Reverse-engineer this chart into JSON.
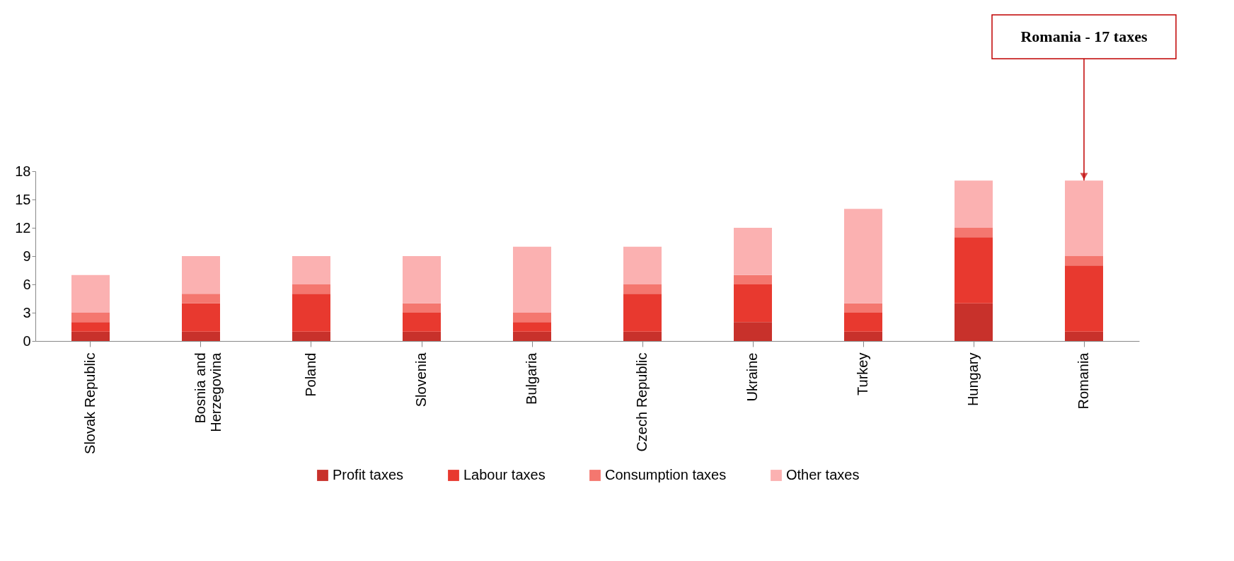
{
  "chart_data": {
    "type": "bar",
    "stacked": true,
    "categories": [
      "Slovak Republic",
      "Bosnia and Herzegovina",
      "Poland",
      "Slovenia",
      "Bulgaria",
      "Czech Republic",
      "Ukraine",
      "Turkey",
      "Hungary",
      "Romania"
    ],
    "series": [
      {
        "name": "Profit taxes",
        "color": "#c8312b",
        "values": [
          1,
          1,
          1,
          1,
          1,
          1,
          2,
          1,
          4,
          1
        ]
      },
      {
        "name": "Labour taxes",
        "color": "#e8392f",
        "values": [
          1,
          3,
          4,
          2,
          1,
          4,
          4,
          2,
          7,
          7
        ]
      },
      {
        "name": "Consumption taxes",
        "color": "#f4776f",
        "values": [
          1,
          1,
          1,
          1,
          1,
          1,
          1,
          1,
          1,
          1
        ]
      },
      {
        "name": "Other taxes",
        "color": "#fbb1b1",
        "values": [
          4,
          4,
          3,
          5,
          7,
          4,
          5,
          10,
          5,
          8
        ]
      }
    ],
    "ylim": [
      0,
      18
    ],
    "yticks": [
      0,
      3,
      6,
      9,
      12,
      15,
      18
    ],
    "grid": false,
    "legend": "bottom",
    "annotations": [
      {
        "text": "Romania - 17 taxes",
        "x": "Romania",
        "y": 17
      }
    ]
  }
}
